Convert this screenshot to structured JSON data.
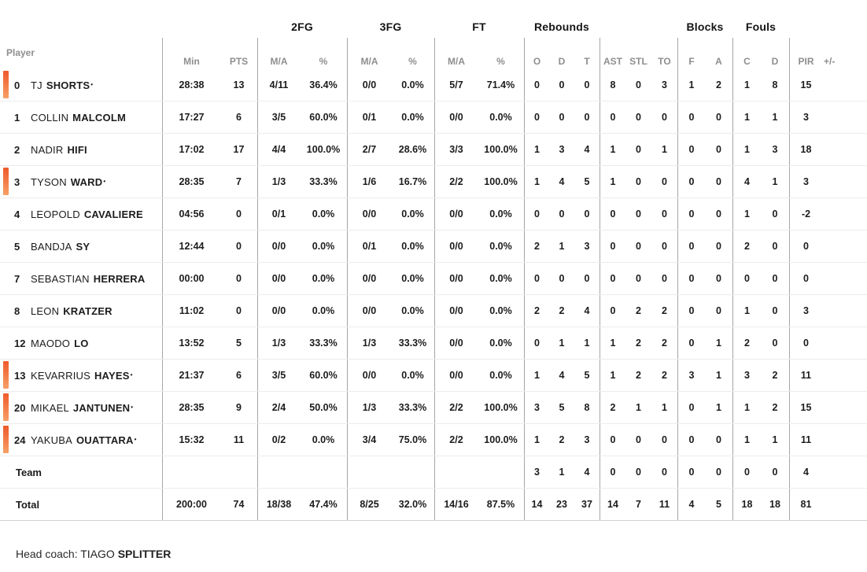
{
  "colors": {
    "starter_bar_top": "#ee5a2b",
    "starter_bar_bottom": "#f7a066",
    "grid_line": "#a6a6a6",
    "row_line": "#ececec"
  },
  "table": {
    "starter_dot": "•",
    "groups": {
      "fg2": "2FG",
      "fg3": "3FG",
      "ft": "FT",
      "reb": "Rebounds",
      "blk": "Blocks",
      "foul": "Fouls"
    },
    "columns": {
      "player": "Player",
      "min": "Min",
      "pts": "PTS",
      "fg2_ma": "M/A",
      "fg2_pct": "%",
      "fg3_ma": "M/A",
      "fg3_pct": "%",
      "ft_ma": "M/A",
      "ft_pct": "%",
      "reb_o": "O",
      "reb_d": "D",
      "reb_t": "T",
      "ast": "AST",
      "stl": "STL",
      "to": "TO",
      "blk_f": "F",
      "blk_a": "A",
      "foul_c": "C",
      "foul_d": "D",
      "pir": "PIR",
      "plusminus": "+/-"
    },
    "rows": [
      {
        "number": "0",
        "first": "TJ",
        "last": "SHORTS",
        "starter": true,
        "min": "28:38",
        "pts": "13",
        "fg2_ma": "4/11",
        "fg2_pct": "36.4%",
        "fg3_ma": "0/0",
        "fg3_pct": "0.0%",
        "ft_ma": "5/7",
        "ft_pct": "71.4%",
        "reb_o": "0",
        "reb_d": "0",
        "reb_t": "0",
        "ast": "8",
        "stl": "0",
        "to": "3",
        "blk_f": "1",
        "blk_a": "2",
        "foul_c": "1",
        "foul_d": "8",
        "pir": "15",
        "plusminus": ""
      },
      {
        "number": "1",
        "first": "COLLIN",
        "last": "MALCOLM",
        "starter": false,
        "min": "17:27",
        "pts": "6",
        "fg2_ma": "3/5",
        "fg2_pct": "60.0%",
        "fg3_ma": "0/1",
        "fg3_pct": "0.0%",
        "ft_ma": "0/0",
        "ft_pct": "0.0%",
        "reb_o": "0",
        "reb_d": "0",
        "reb_t": "0",
        "ast": "0",
        "stl": "0",
        "to": "0",
        "blk_f": "0",
        "blk_a": "0",
        "foul_c": "1",
        "foul_d": "1",
        "pir": "3",
        "plusminus": ""
      },
      {
        "number": "2",
        "first": "NADIR",
        "last": "HIFI",
        "starter": false,
        "min": "17:02",
        "pts": "17",
        "fg2_ma": "4/4",
        "fg2_pct": "100.0%",
        "fg3_ma": "2/7",
        "fg3_pct": "28.6%",
        "ft_ma": "3/3",
        "ft_pct": "100.0%",
        "reb_o": "1",
        "reb_d": "3",
        "reb_t": "4",
        "ast": "1",
        "stl": "0",
        "to": "1",
        "blk_f": "0",
        "blk_a": "0",
        "foul_c": "1",
        "foul_d": "3",
        "pir": "18",
        "plusminus": ""
      },
      {
        "number": "3",
        "first": "TYSON",
        "last": "WARD",
        "starter": true,
        "min": "28:35",
        "pts": "7",
        "fg2_ma": "1/3",
        "fg2_pct": "33.3%",
        "fg3_ma": "1/6",
        "fg3_pct": "16.7%",
        "ft_ma": "2/2",
        "ft_pct": "100.0%",
        "reb_o": "1",
        "reb_d": "4",
        "reb_t": "5",
        "ast": "1",
        "stl": "0",
        "to": "0",
        "blk_f": "0",
        "blk_a": "0",
        "foul_c": "4",
        "foul_d": "1",
        "pir": "3",
        "plusminus": ""
      },
      {
        "number": "4",
        "first": "LEOPOLD",
        "last": "CAVALIERE",
        "starter": false,
        "min": "04:56",
        "pts": "0",
        "fg2_ma": "0/1",
        "fg2_pct": "0.0%",
        "fg3_ma": "0/0",
        "fg3_pct": "0.0%",
        "ft_ma": "0/0",
        "ft_pct": "0.0%",
        "reb_o": "0",
        "reb_d": "0",
        "reb_t": "0",
        "ast": "0",
        "stl": "0",
        "to": "0",
        "blk_f": "0",
        "blk_a": "0",
        "foul_c": "1",
        "foul_d": "0",
        "pir": "-2",
        "plusminus": ""
      },
      {
        "number": "5",
        "first": "BANDJA",
        "last": "SY",
        "starter": false,
        "min": "12:44",
        "pts": "0",
        "fg2_ma": "0/0",
        "fg2_pct": "0.0%",
        "fg3_ma": "0/1",
        "fg3_pct": "0.0%",
        "ft_ma": "0/0",
        "ft_pct": "0.0%",
        "reb_o": "2",
        "reb_d": "1",
        "reb_t": "3",
        "ast": "0",
        "stl": "0",
        "to": "0",
        "blk_f": "0",
        "blk_a": "0",
        "foul_c": "2",
        "foul_d": "0",
        "pir": "0",
        "plusminus": ""
      },
      {
        "number": "7",
        "first": "SEBASTIAN",
        "last": "HERRERA",
        "starter": false,
        "min": "00:00",
        "pts": "0",
        "fg2_ma": "0/0",
        "fg2_pct": "0.0%",
        "fg3_ma": "0/0",
        "fg3_pct": "0.0%",
        "ft_ma": "0/0",
        "ft_pct": "0.0%",
        "reb_o": "0",
        "reb_d": "0",
        "reb_t": "0",
        "ast": "0",
        "stl": "0",
        "to": "0",
        "blk_f": "0",
        "blk_a": "0",
        "foul_c": "0",
        "foul_d": "0",
        "pir": "0",
        "plusminus": ""
      },
      {
        "number": "8",
        "first": "LEON",
        "last": "KRATZER",
        "starter": false,
        "min": "11:02",
        "pts": "0",
        "fg2_ma": "0/0",
        "fg2_pct": "0.0%",
        "fg3_ma": "0/0",
        "fg3_pct": "0.0%",
        "ft_ma": "0/0",
        "ft_pct": "0.0%",
        "reb_o": "2",
        "reb_d": "2",
        "reb_t": "4",
        "ast": "0",
        "stl": "2",
        "to": "2",
        "blk_f": "0",
        "blk_a": "0",
        "foul_c": "1",
        "foul_d": "0",
        "pir": "3",
        "plusminus": ""
      },
      {
        "number": "12",
        "first": "MAODO",
        "last": "LO",
        "starter": false,
        "min": "13:52",
        "pts": "5",
        "fg2_ma": "1/3",
        "fg2_pct": "33.3%",
        "fg3_ma": "1/3",
        "fg3_pct": "33.3%",
        "ft_ma": "0/0",
        "ft_pct": "0.0%",
        "reb_o": "0",
        "reb_d": "1",
        "reb_t": "1",
        "ast": "1",
        "stl": "2",
        "to": "2",
        "blk_f": "0",
        "blk_a": "1",
        "foul_c": "2",
        "foul_d": "0",
        "pir": "0",
        "plusminus": ""
      },
      {
        "number": "13",
        "first": "KEVARRIUS",
        "last": "HAYES",
        "starter": true,
        "min": "21:37",
        "pts": "6",
        "fg2_ma": "3/5",
        "fg2_pct": "60.0%",
        "fg3_ma": "0/0",
        "fg3_pct": "0.0%",
        "ft_ma": "0/0",
        "ft_pct": "0.0%",
        "reb_o": "1",
        "reb_d": "4",
        "reb_t": "5",
        "ast": "1",
        "stl": "2",
        "to": "2",
        "blk_f": "3",
        "blk_a": "1",
        "foul_c": "3",
        "foul_d": "2",
        "pir": "11",
        "plusminus": ""
      },
      {
        "number": "20",
        "first": "MIKAEL",
        "last": "JANTUNEN",
        "starter": true,
        "min": "28:35",
        "pts": "9",
        "fg2_ma": "2/4",
        "fg2_pct": "50.0%",
        "fg3_ma": "1/3",
        "fg3_pct": "33.3%",
        "ft_ma": "2/2",
        "ft_pct": "100.0%",
        "reb_o": "3",
        "reb_d": "5",
        "reb_t": "8",
        "ast": "2",
        "stl": "1",
        "to": "1",
        "blk_f": "0",
        "blk_a": "1",
        "foul_c": "1",
        "foul_d": "2",
        "pir": "15",
        "plusminus": ""
      },
      {
        "number": "24",
        "first": "YAKUBA",
        "last": "OUATTARA",
        "starter": true,
        "min": "15:32",
        "pts": "11",
        "fg2_ma": "0/2",
        "fg2_pct": "0.0%",
        "fg3_ma": "3/4",
        "fg3_pct": "75.0%",
        "ft_ma": "2/2",
        "ft_pct": "100.0%",
        "reb_o": "1",
        "reb_d": "2",
        "reb_t": "3",
        "ast": "0",
        "stl": "0",
        "to": "0",
        "blk_f": "0",
        "blk_a": "0",
        "foul_c": "1",
        "foul_d": "1",
        "pir": "11",
        "plusminus": ""
      },
      {
        "type": "team",
        "label": "Team",
        "min": "",
        "pts": "",
        "fg2_ma": "",
        "fg2_pct": "",
        "fg3_ma": "",
        "fg3_pct": "",
        "ft_ma": "",
        "ft_pct": "",
        "reb_o": "3",
        "reb_d": "1",
        "reb_t": "4",
        "ast": "0",
        "stl": "0",
        "to": "0",
        "blk_f": "0",
        "blk_a": "0",
        "foul_c": "0",
        "foul_d": "0",
        "pir": "4",
        "plusminus": ""
      },
      {
        "type": "total",
        "label": "Total",
        "min": "200:00",
        "pts": "74",
        "fg2_ma": "18/38",
        "fg2_pct": "47.4%",
        "fg3_ma": "8/25",
        "fg3_pct": "32.0%",
        "ft_ma": "14/16",
        "ft_pct": "87.5%",
        "reb_o": "14",
        "reb_d": "23",
        "reb_t": "37",
        "ast": "14",
        "stl": "7",
        "to": "11",
        "blk_f": "4",
        "blk_a": "5",
        "foul_c": "18",
        "foul_d": "18",
        "pir": "81",
        "plusminus": ""
      }
    ]
  },
  "footer": {
    "head_coach_label": "Head coach:",
    "head_coach_first": "TIAGO",
    "head_coach_last": "SPLITTER"
  }
}
